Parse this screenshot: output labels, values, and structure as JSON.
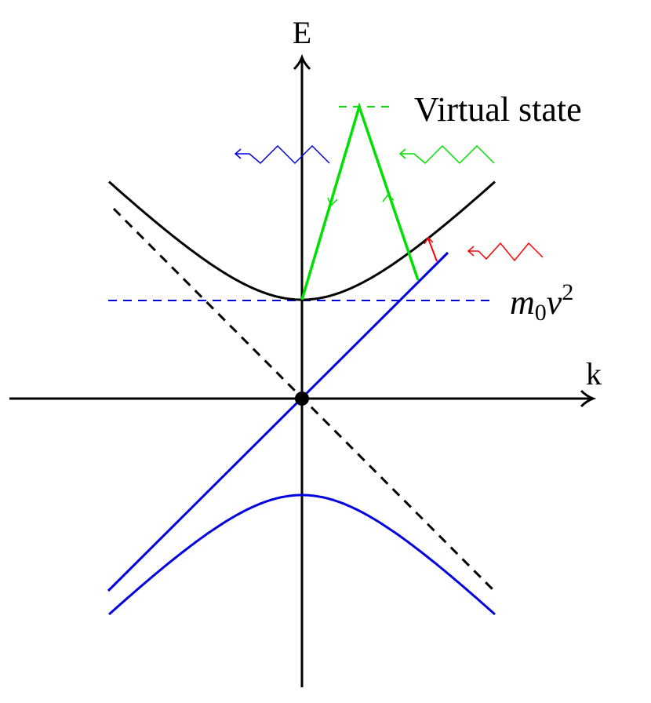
{
  "axes": {
    "y_label": "E",
    "x_label": "k"
  },
  "labels": {
    "virtual_state": "Virtual state",
    "mass_energy": {
      "base": "m",
      "subscript": "0",
      "variable": "v",
      "superscript": "2"
    }
  }
}
